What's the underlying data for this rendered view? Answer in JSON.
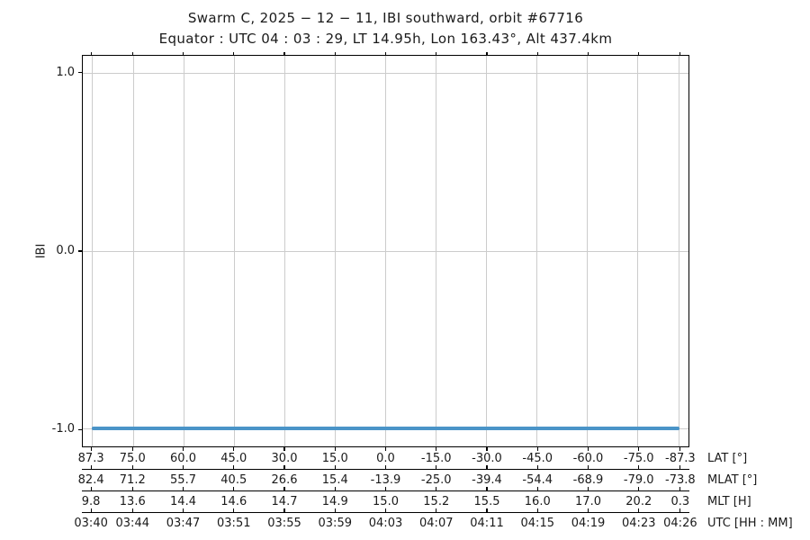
{
  "figure": {
    "title": "Swarm C,  2025 − 12 − 11,  IBI southward,  orbit #67716",
    "subtitle": "Equator :  UTC 04 : 03 : 29,  LT 14.95h,  Lon 163.43°,  Alt 437.4km"
  },
  "chart_data": {
    "type": "line",
    "title": "Swarm C, 2025 − 12 − 11, IBI southward, orbit #67716",
    "subtitle": "Equator : UTC 04 : 03 : 29, LT 14.95h, Lon 163.43°, Alt 437.4km",
    "ylabel": "IBI",
    "ylim": [
      -1.1,
      1.1
    ],
    "yticks": [
      1.0,
      0.0,
      -1.0
    ],
    "ytick_labels": [
      "1.0",
      "0.0",
      "-1.0"
    ],
    "x_axis_variable": "latitude",
    "xlim": [
      90,
      -90
    ],
    "grid": true,
    "legend_position": "none",
    "xticks_lat": [
      87.3,
      75.0,
      60.0,
      45.0,
      30.0,
      15.0,
      0.0,
      -15.0,
      -30.0,
      -45.0,
      -60.0,
      -75.0,
      -87.3
    ],
    "series": [
      {
        "name": "IBI",
        "color": "#4a94c8",
        "x_lat": [
          87.3,
          75.0,
          60.0,
          45.0,
          30.0,
          15.0,
          0.0,
          -15.0,
          -30.0,
          -45.0,
          -60.0,
          -75.0,
          -87.3
        ],
        "y": [
          -1.0,
          -1.0,
          -1.0,
          -1.0,
          -1.0,
          -1.0,
          -1.0,
          -1.0,
          -1.0,
          -1.0,
          -1.0,
          -1.0,
          -1.0
        ]
      }
    ],
    "x_label_rows": [
      {
        "label": "LAT [°]",
        "values": [
          "87.3",
          "75.0",
          "60.0",
          "45.0",
          "30.0",
          "15.0",
          "0.0",
          "-15.0",
          "-30.0",
          "-45.0",
          "-60.0",
          "-75.0",
          "-87.3"
        ]
      },
      {
        "label": "MLAT [°]",
        "values": [
          "82.4",
          "71.2",
          "55.7",
          "40.5",
          "26.6",
          "15.4",
          "-13.9",
          "-25.0",
          "-39.4",
          "-54.4",
          "-68.9",
          "-79.0",
          "-73.8"
        ]
      },
      {
        "label": "MLT [H]",
        "values": [
          "9.8",
          "13.6",
          "14.4",
          "14.6",
          "14.7",
          "14.9",
          "15.0",
          "15.2",
          "15.5",
          "16.0",
          "17.0",
          "20.2",
          "0.3"
        ]
      },
      {
        "label": "UTC [HH : MM]",
        "values": [
          "03:40",
          "03:44",
          "03:47",
          "03:51",
          "03:55",
          "03:59",
          "04:03",
          "04:07",
          "04:11",
          "04:15",
          "04:19",
          "04:23",
          "04:26"
        ]
      }
    ]
  },
  "colors": {
    "background": "#ffffff",
    "text": "#1a1a1a",
    "grid": "#cccccc",
    "spine": "#000000",
    "line": "#4a94c8"
  }
}
